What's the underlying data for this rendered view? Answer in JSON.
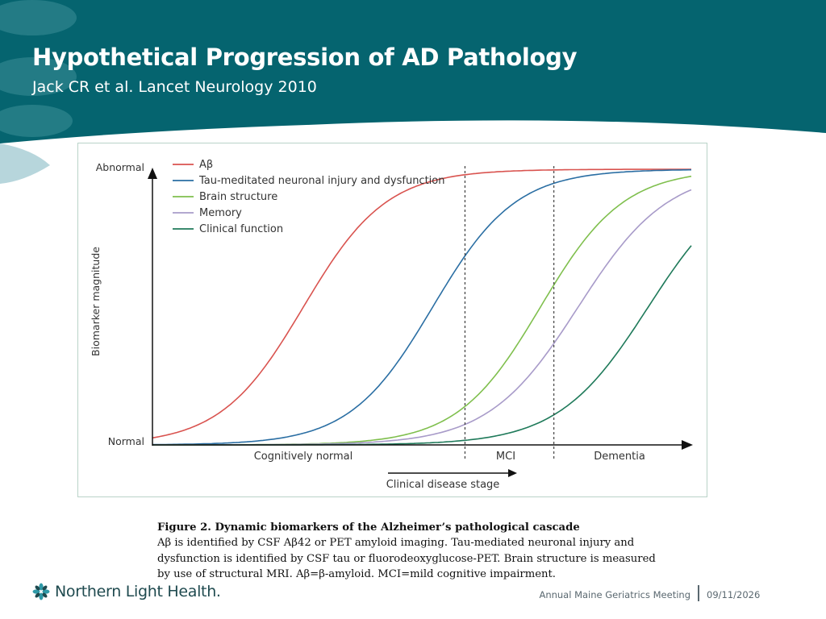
{
  "slide": {
    "title": "Hypothetical Progression of AD Pathology",
    "subtitle": "Jack CR et al. Lancet Neurology 2010"
  },
  "colors": {
    "header": "#05646f",
    "accent_light": "#b7d6dc",
    "red": "#d9534f",
    "blue": "#2a6ea3",
    "green": "#7fbf4d",
    "purple": "#a89bc9",
    "dark_green": "#1f7a5a"
  },
  "chart_data": {
    "type": "line",
    "y_axis": {
      "top_label": "Abnormal",
      "bottom_label": "Normal",
      "title": "Biomarker magnitude"
    },
    "x_axis": {
      "stages": [
        "Cognitively normal",
        "MCI",
        "Dementia"
      ],
      "arrow_label": "Clinical disease stage"
    },
    "stage_boundaries": [
      0.58,
      0.745
    ],
    "series": [
      {
        "name": "Aβ",
        "color": "#d9534f",
        "midpoint": 0.28,
        "steepness": 13
      },
      {
        "name": "Tau-meditated neuronal injury and dysfunction",
        "color": "#2a6ea3",
        "midpoint": 0.52,
        "steepness": 13
      },
      {
        "name": "Brain structure",
        "color": "#7fbf4d",
        "midpoint": 0.72,
        "steepness": 13
      },
      {
        "name": "Memory",
        "color": "#a89bc9",
        "midpoint": 0.79,
        "steepness": 12
      },
      {
        "name": "Clinical function",
        "color": "#1f7a5a",
        "midpoint": 0.92,
        "steepness": 12
      }
    ],
    "ylim": [
      0,
      1
    ],
    "xlim": [
      0,
      1
    ]
  },
  "caption": {
    "title": "Figure 2. Dynamic biomarkers of the Alzheimer’s pathological cascade",
    "line1": "Aβ is identified by CSF Aβ42 or PET amyloid imaging. Tau-mediated neuronal injury and",
    "line2": "dysfunction is identified by CSF tau or fluorodeoxyglucose-PET. Brain structure is measured",
    "line3": "by use of structural MRI. Aβ=β-amyloid. MCI=mild cognitive impairment."
  },
  "footer": {
    "logo_text": "Northern Light Health.",
    "meeting": "Annual Maine Geriatrics Meeting",
    "date": "09/11/2026"
  }
}
